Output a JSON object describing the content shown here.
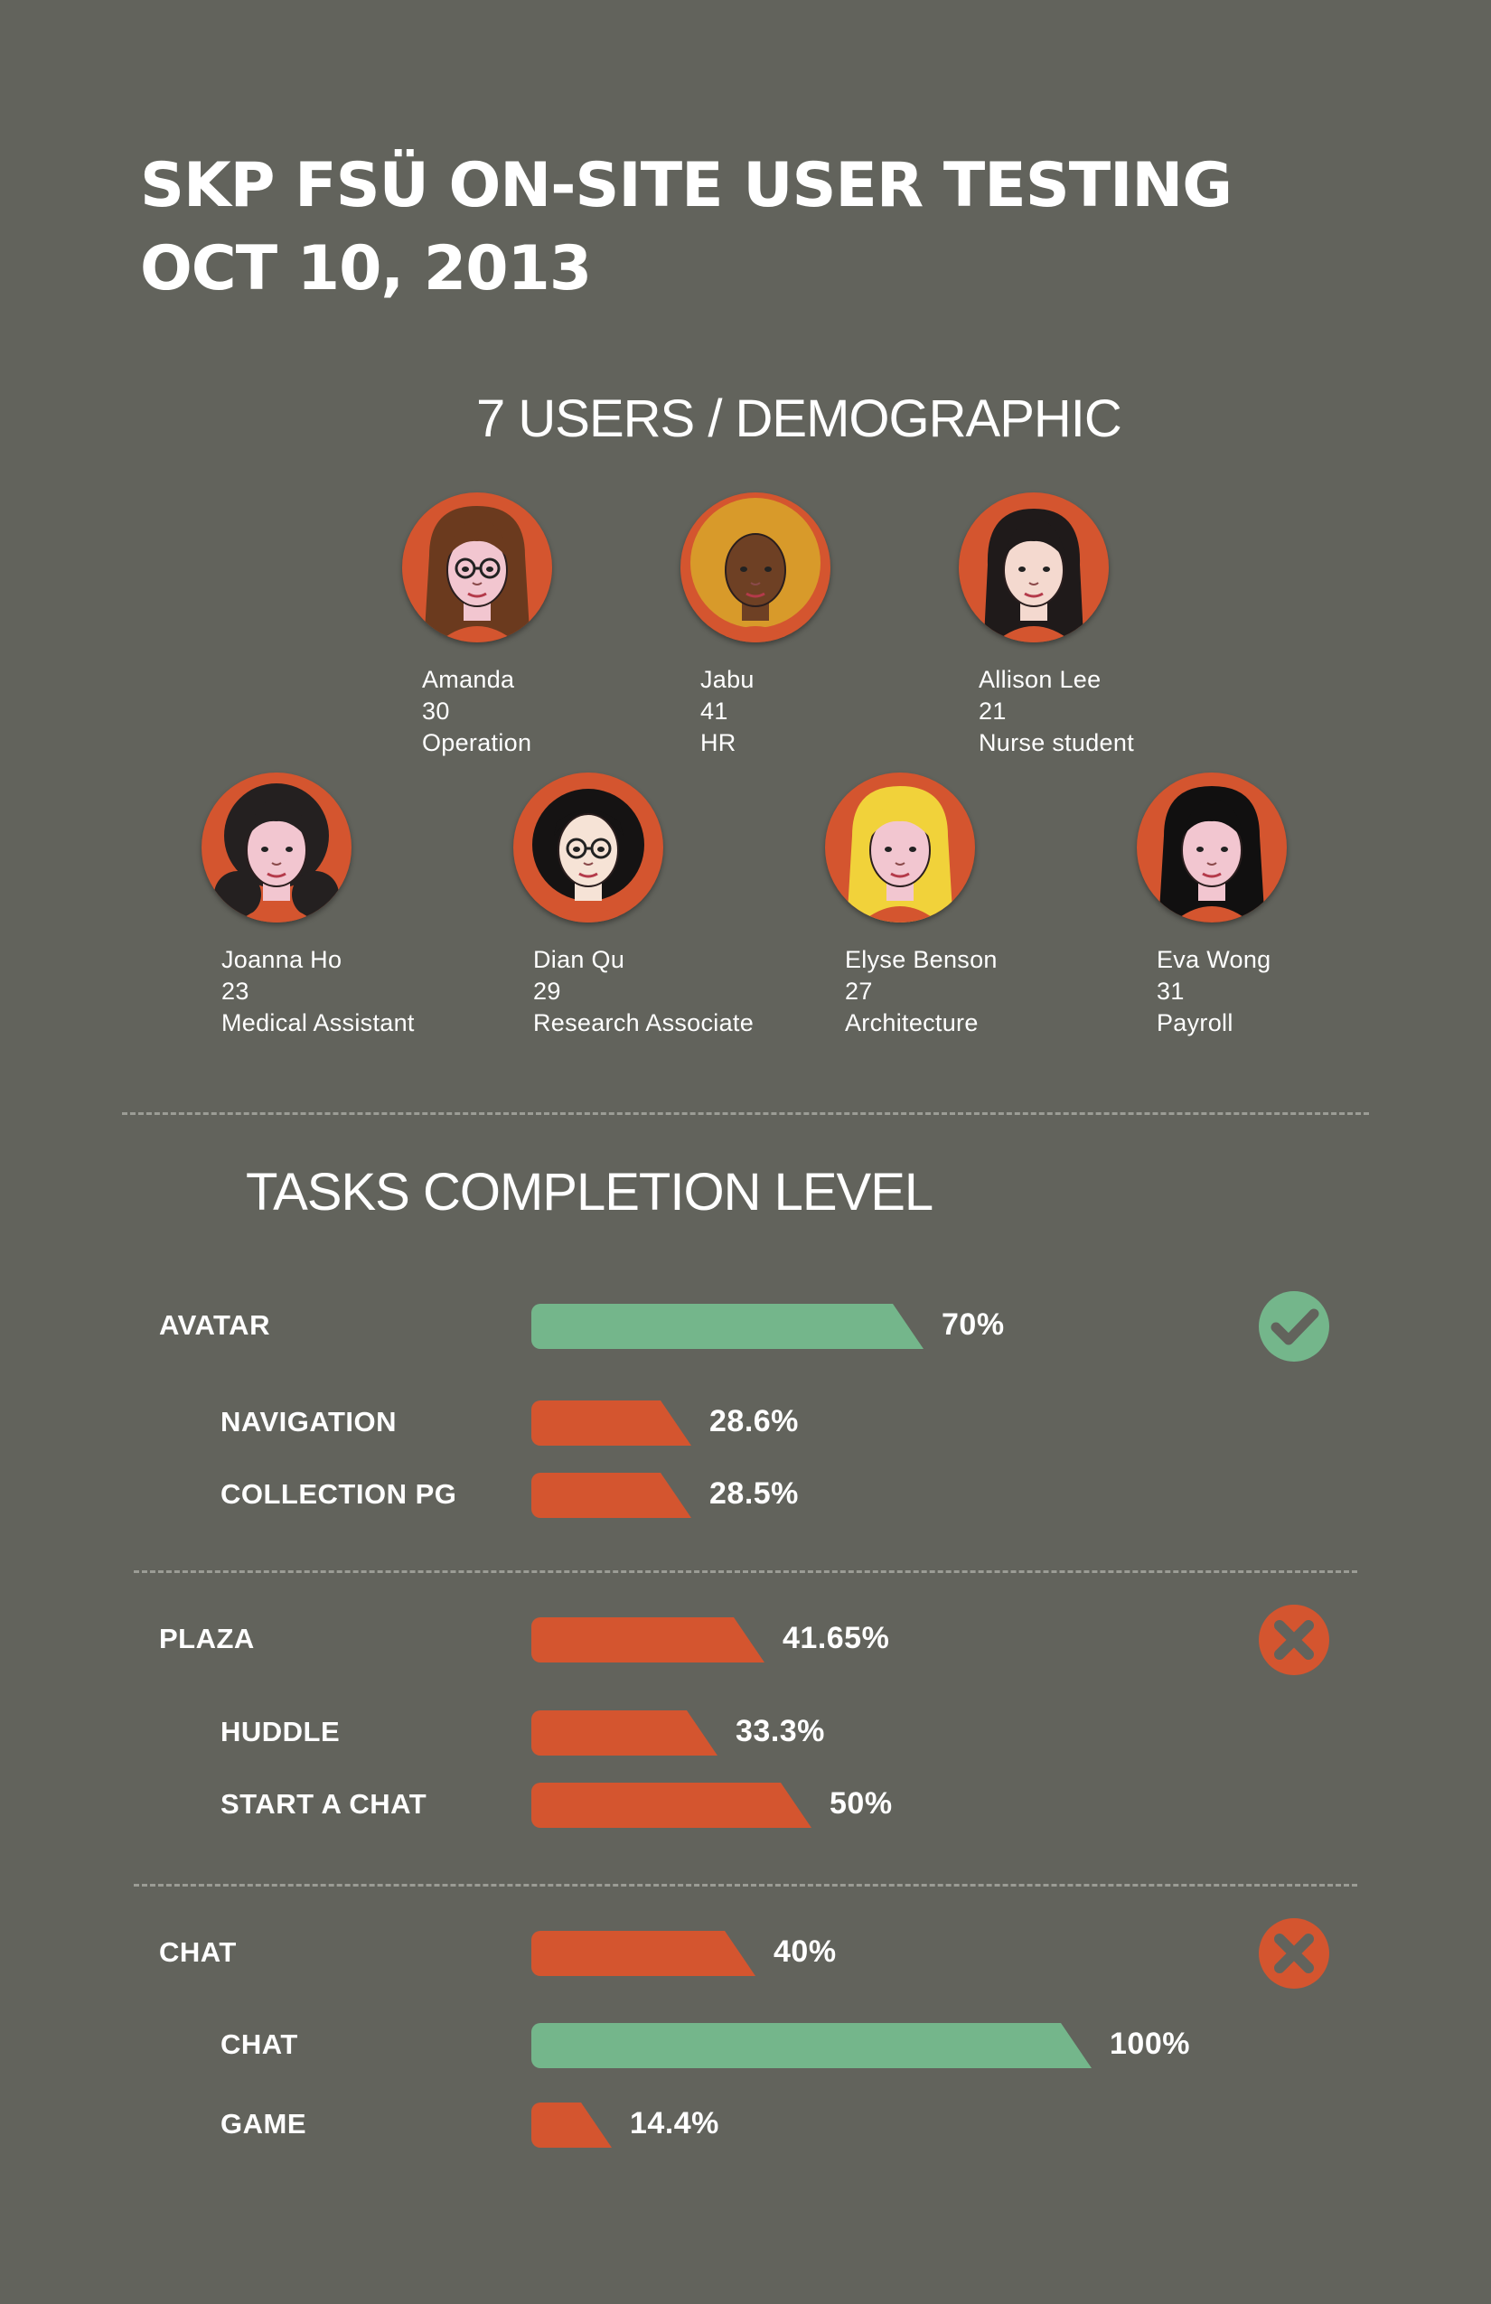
{
  "header": {
    "title_line1": "SKP FSÜ ON-SITE USER TESTING",
    "title_line2": "OCT 10, 2013"
  },
  "users_section": {
    "heading": "7 USERS / DEMOGRAPHIC",
    "users": [
      {
        "name": "Amanda",
        "age": "30",
        "role": "Operation",
        "avatar": "woman-brown-hair-glasses-icon"
      },
      {
        "name": "Jabu",
        "age": "41",
        "role": "HR",
        "avatar": "woman-curly-blonde-hair-icon"
      },
      {
        "name": "Allison Lee",
        "age": "21",
        "role": "Nurse student",
        "avatar": "woman-black-hair-bangs-icon"
      },
      {
        "name": "Joanna Ho",
        "age": "23",
        "role": "Medical Assistant",
        "avatar": "woman-black-curly-hair-icon"
      },
      {
        "name": "Dian Qu",
        "age": "29",
        "role": "Research Associate",
        "avatar": "woman-black-bob-glasses-icon"
      },
      {
        "name": "Elyse Benson",
        "age": "27",
        "role": "Architecture",
        "avatar": "woman-blonde-wavy-hair-icon"
      },
      {
        "name": "Eva Wong",
        "age": "31",
        "role": "Payroll",
        "avatar": "woman-long-black-hair-icon"
      }
    ]
  },
  "tasks_section": {
    "heading": "TASKS COMPLETION LEVEL",
    "groups": [
      {
        "label": "AVATAR",
        "value": "70%",
        "level": 0.7,
        "status": "check-circle-icon",
        "subtasks": [
          {
            "label": "NAVIGATION",
            "value": "28.6%",
            "level": 0.286
          },
          {
            "label": "COLLECTION PG",
            "value": "28.5%",
            "level": 0.285
          }
        ]
      },
      {
        "label": "PLAZA",
        "value": "41.65%",
        "level": 0.4165,
        "status": "x-circle-icon",
        "subtasks": [
          {
            "label": "HUDDLE",
            "value": "33.3%",
            "level": 0.333
          },
          {
            "label": "START A CHAT",
            "value": "50%",
            "level": 0.5
          }
        ]
      },
      {
        "label": "CHAT",
        "value": "40%",
        "level": 0.4,
        "status": "x-circle-icon",
        "subtasks": [
          {
            "label": "CHAT",
            "value": "100%",
            "level": 1.0
          },
          {
            "label": "GAME",
            "value": "14.4%",
            "level": 0.144
          }
        ]
      }
    ]
  },
  "colors": {
    "background": "#62635c",
    "accent_orange": "#d4552f",
    "accent_green": "#74b68b",
    "text": "#ffffff"
  }
}
